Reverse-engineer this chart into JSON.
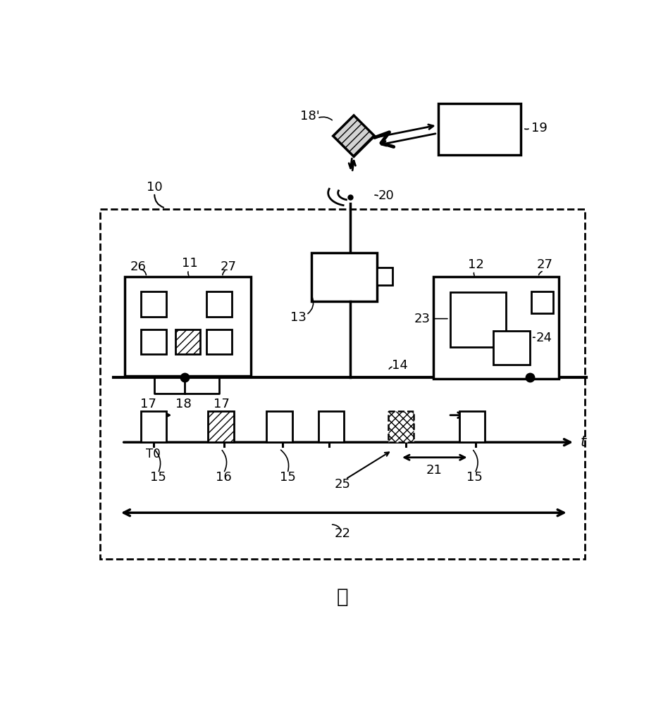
{
  "bg": "#ffffff",
  "fs": 13,
  "title": "图",
  "title_fs": 20
}
